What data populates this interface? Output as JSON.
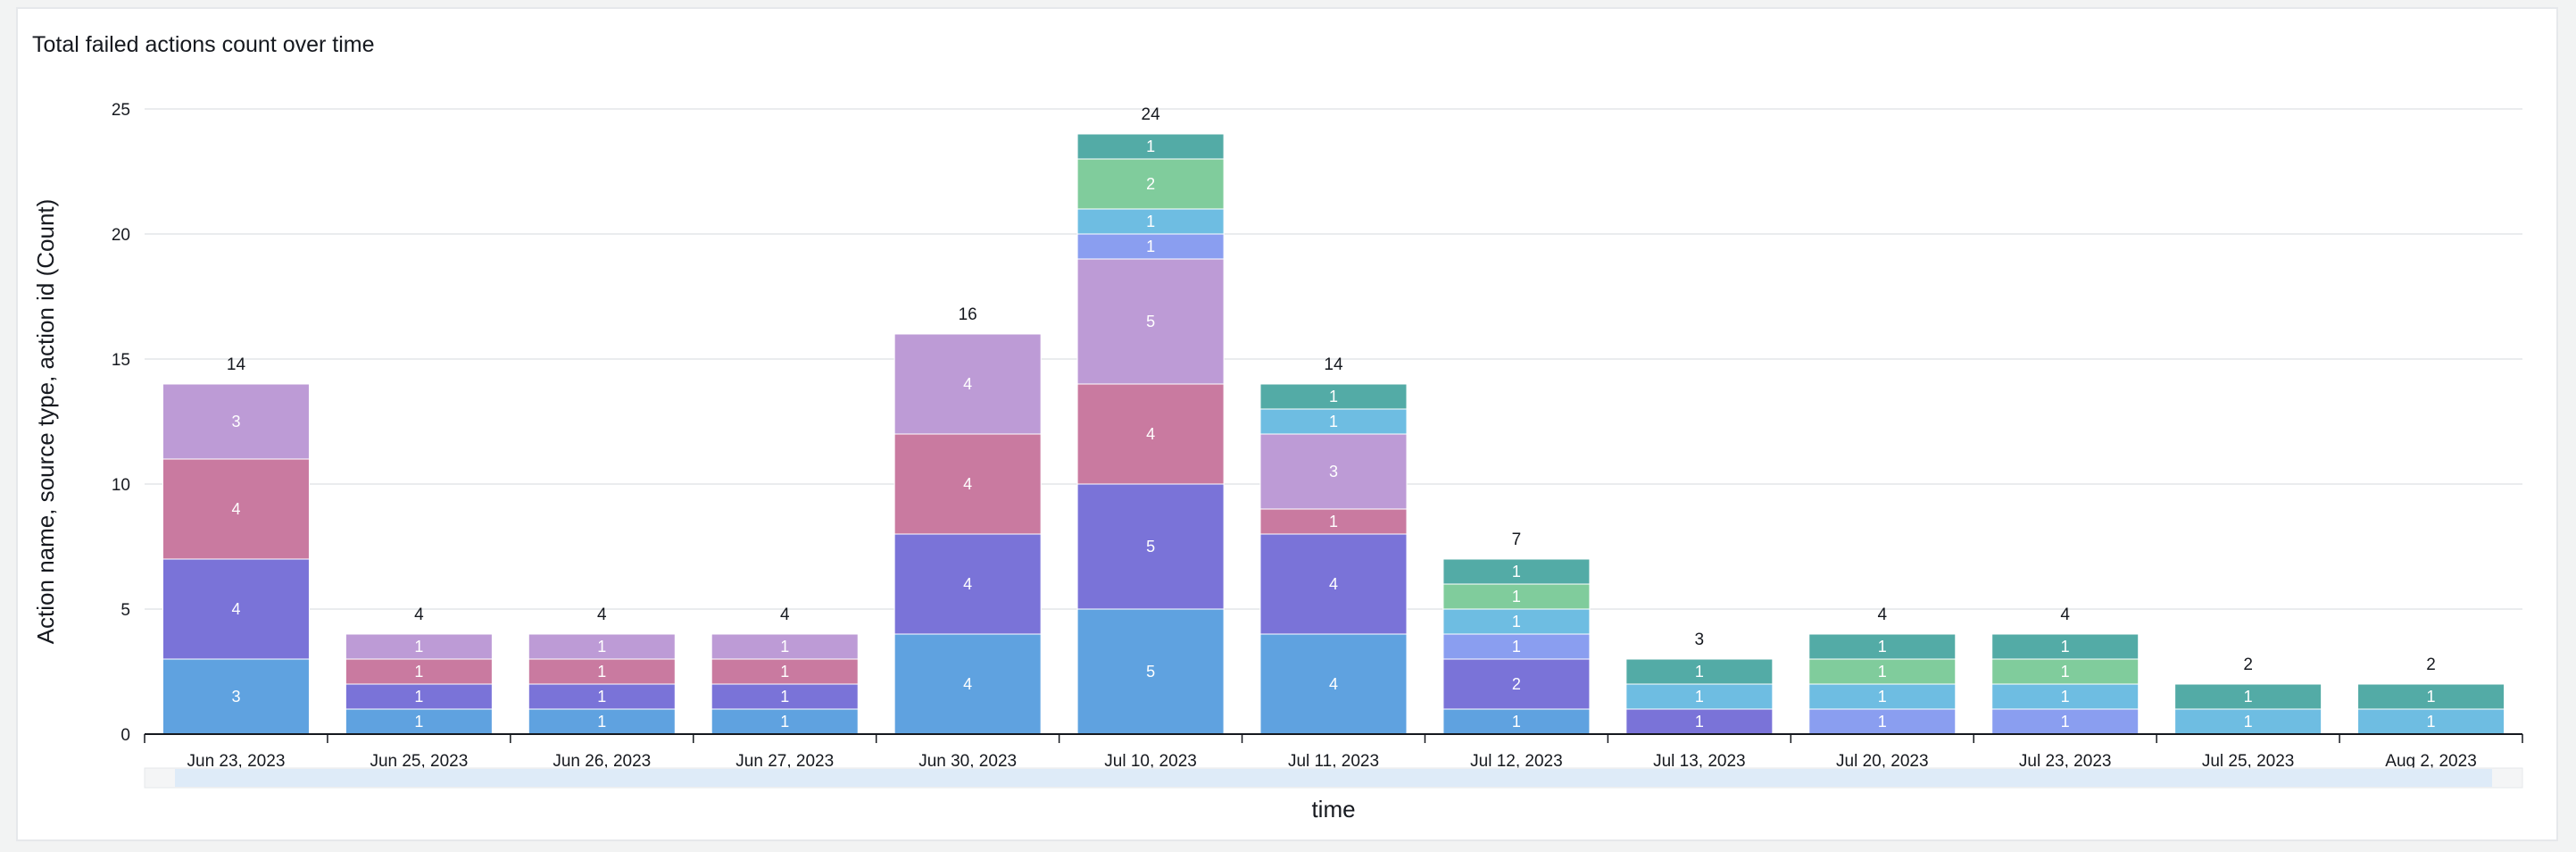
{
  "panel": {
    "title": "Total failed actions count over time"
  },
  "chart_data": {
    "type": "bar",
    "stacked": true,
    "title": "Total failed actions count over time",
    "xlabel": "time",
    "ylabel": "Action name, source type, action id (Count)",
    "ylim": [
      0,
      25
    ],
    "yticks": [
      0,
      5,
      10,
      15,
      20,
      25
    ],
    "grid": true,
    "legend": "none",
    "colors": [
      "#5fa2e0",
      "#7a73d8",
      "#c97aa0",
      "#bd9bd6",
      "#8a9ef0",
      "#6ebde2",
      "#80cc9c",
      "#53aba6"
    ],
    "categories": [
      "Jun 23, 2023",
      "Jun 25, 2023",
      "Jun 26, 2023",
      "Jun 27, 2023",
      "Jun 30, 2023",
      "Jul 10, 2023",
      "Jul 11, 2023",
      "Jul 12, 2023",
      "Jul 13, 2023",
      "Jul 20, 2023",
      "Jul 23, 2023",
      "Jul 25, 2023",
      "Aug 2, 2023"
    ],
    "series": [
      {
        "values": [
          3,
          1,
          1,
          1,
          4,
          5,
          4,
          1,
          0,
          0,
          0,
          0,
          0
        ]
      },
      {
        "values": [
          4,
          1,
          1,
          1,
          4,
          5,
          4,
          2,
          1,
          0,
          0,
          0,
          0
        ]
      },
      {
        "values": [
          4,
          1,
          1,
          1,
          4,
          4,
          1,
          0,
          0,
          0,
          0,
          0,
          0
        ]
      },
      {
        "values": [
          3,
          1,
          1,
          1,
          4,
          5,
          3,
          0,
          0,
          0,
          0,
          0,
          0
        ]
      },
      {
        "values": [
          0,
          0,
          0,
          0,
          0,
          1,
          0,
          1,
          0,
          1,
          1,
          0,
          0
        ]
      },
      {
        "values": [
          0,
          0,
          0,
          0,
          0,
          1,
          1,
          1,
          1,
          1,
          1,
          1,
          1
        ]
      },
      {
        "values": [
          0,
          0,
          0,
          0,
          0,
          2,
          0,
          1,
          0,
          1,
          1,
          0,
          0
        ]
      },
      {
        "values": [
          0,
          0,
          0,
          0,
          0,
          1,
          1,
          1,
          1,
          1,
          1,
          1,
          1
        ]
      }
    ],
    "totals": [
      14,
      4,
      4,
      4,
      16,
      24,
      14,
      7,
      3,
      4,
      4,
      2,
      2
    ]
  }
}
